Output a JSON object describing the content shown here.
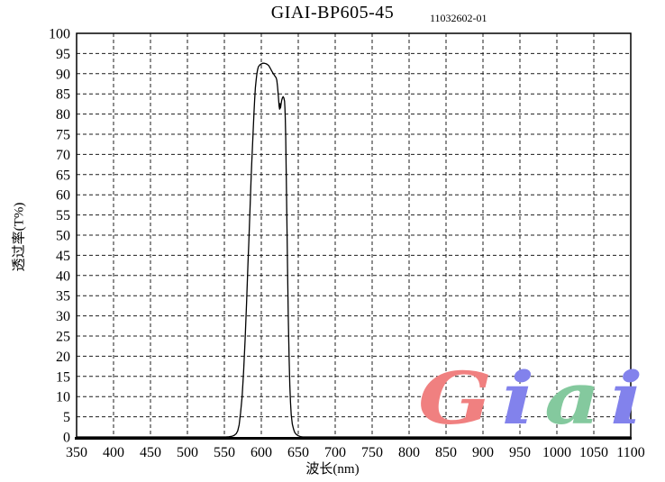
{
  "header": {
    "title": "GIAI-BP605-45",
    "code": "11032602-01"
  },
  "chart_data": {
    "type": "line",
    "title": "GIAI-BP605-45",
    "subtitle_code": "11032602-01",
    "xlabel": "波长(nm)",
    "ylabel": "透过率(T%)",
    "xlim": [
      350,
      1100
    ],
    "ylim": [
      0,
      100
    ],
    "x_ticks": [
      350,
      400,
      450,
      500,
      550,
      600,
      650,
      700,
      750,
      800,
      850,
      900,
      950,
      1000,
      1050,
      1100
    ],
    "y_ticks": [
      0,
      5,
      10,
      15,
      20,
      25,
      30,
      35,
      40,
      45,
      50,
      55,
      60,
      65,
      70,
      75,
      80,
      85,
      90,
      95,
      100
    ],
    "grid": "dashed",
    "legend": "none",
    "line_color": "#000000",
    "description": "Bandpass filter transmission: zero outside ~565-650 nm, passband peak ~92.5% near 600-608 nm, notch dip to ~81% at ~625 nm, rebound to ~84% at ~630 nm, steep cutoff by ~645 nm",
    "series": [
      {
        "name": "transmittance",
        "points": [
          [
            350,
            0
          ],
          [
            540,
            0
          ],
          [
            552,
            0
          ],
          [
            556,
            0.05
          ],
          [
            560,
            0.15
          ],
          [
            563,
            0.35
          ],
          [
            566,
            0.8
          ],
          [
            568,
            1.5
          ],
          [
            570,
            3
          ],
          [
            572,
            6
          ],
          [
            574,
            10
          ],
          [
            576,
            16
          ],
          [
            578,
            24
          ],
          [
            580,
            33
          ],
          [
            582,
            43
          ],
          [
            583,
            48
          ],
          [
            584,
            53
          ],
          [
            585,
            58
          ],
          [
            586,
            63
          ],
          [
            587,
            67.5
          ],
          [
            588,
            72
          ],
          [
            589,
            76
          ],
          [
            590,
            80
          ],
          [
            591,
            83.5
          ],
          [
            592,
            86.5
          ],
          [
            593,
            88.5
          ],
          [
            594,
            90
          ],
          [
            595,
            91
          ],
          [
            596,
            91.7
          ],
          [
            598,
            92.2
          ],
          [
            600,
            92.4
          ],
          [
            602,
            92.6
          ],
          [
            604,
            92.6
          ],
          [
            606,
            92.5
          ],
          [
            608,
            92.3
          ],
          [
            610,
            92
          ],
          [
            612,
            91.4
          ],
          [
            614,
            90.7
          ],
          [
            616,
            90.1
          ],
          [
            618,
            89.5
          ],
          [
            620,
            89
          ],
          [
            621,
            88.4
          ],
          [
            622,
            86.8
          ],
          [
            623,
            84.5
          ],
          [
            624,
            82
          ],
          [
            624.7,
            81.2
          ],
          [
            625.3,
            82.6
          ],
          [
            626,
            81.5
          ],
          [
            626.7,
            82.4
          ],
          [
            627.5,
            83.4
          ],
          [
            628.5,
            84
          ],
          [
            629.5,
            84.3
          ],
          [
            630.5,
            84
          ],
          [
            631.5,
            83.2
          ],
          [
            632,
            81.5
          ],
          [
            632.5,
            79
          ],
          [
            633,
            74
          ],
          [
            633.7,
            66
          ],
          [
            634.5,
            55
          ],
          [
            635.5,
            42
          ],
          [
            636.5,
            30
          ],
          [
            637.5,
            20
          ],
          [
            638.5,
            13
          ],
          [
            639.5,
            8.5
          ],
          [
            640.5,
            5.5
          ],
          [
            642,
            3.2
          ],
          [
            643.5,
            2
          ],
          [
            645,
            1.2
          ],
          [
            647,
            0.7
          ],
          [
            650,
            0.3
          ],
          [
            653,
            0.1
          ],
          [
            656,
            0
          ],
          [
            700,
            0
          ],
          [
            1100,
            0
          ]
        ]
      }
    ]
  },
  "logo": {
    "name": "Giai",
    "letters": [
      {
        "char": "G",
        "color": "#f08080"
      },
      {
        "char": "i",
        "color": "#8282ec"
      },
      {
        "char": "a",
        "color": "#84c99e"
      },
      {
        "char": "i",
        "color": "#8282ec"
      }
    ]
  }
}
